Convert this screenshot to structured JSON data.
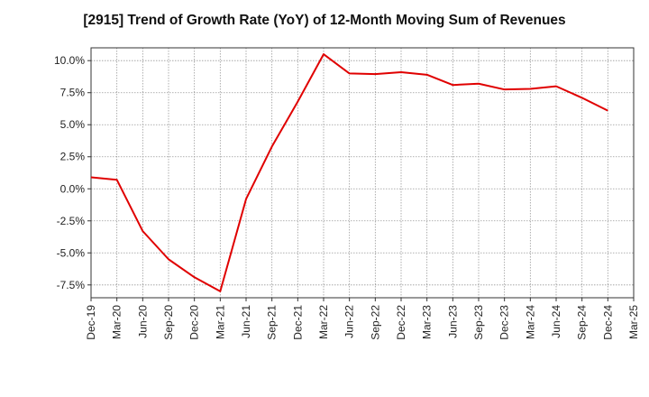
{
  "chart_data": {
    "type": "line",
    "title": "[2915]  Trend of Growth Rate (YoY) of 12-Month Moving Sum of Revenues",
    "xlabel": "",
    "ylabel": "",
    "categories": [
      "Dec-19",
      "Mar-20",
      "Jun-20",
      "Sep-20",
      "Dec-20",
      "Mar-21",
      "Jun-21",
      "Sep-21",
      "Dec-21",
      "Mar-22",
      "Jun-22",
      "Sep-22",
      "Dec-22",
      "Mar-23",
      "Jun-23",
      "Sep-23",
      "Dec-23",
      "Mar-24",
      "Jun-24",
      "Sep-24",
      "Dec-24",
      "Mar-25"
    ],
    "series": [
      {
        "values": [
          0.9,
          0.7,
          -3.3,
          -5.5,
          -6.9,
          -8.0,
          -0.8,
          3.3,
          6.8,
          10.5,
          9.0,
          8.95,
          9.1,
          8.9,
          8.1,
          8.2,
          7.75,
          7.8,
          8.0,
          7.1,
          6.1,
          null
        ]
      }
    ],
    "y_ticks": [
      "-7.5%",
      "-5.0%",
      "-2.5%",
      "0.0%",
      "2.5%",
      "5.0%",
      "7.5%",
      "10.0%"
    ],
    "ylim": [
      -8.5,
      11.0
    ],
    "grid": true,
    "colors": {
      "line": "#e00000",
      "grid": "#999999",
      "axis": "#333333"
    }
  }
}
